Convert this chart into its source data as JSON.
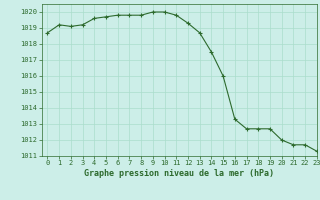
{
  "x": [
    0,
    1,
    2,
    3,
    4,
    5,
    6,
    7,
    8,
    9,
    10,
    11,
    12,
    13,
    14,
    15,
    16,
    17,
    18,
    19,
    20,
    21,
    22,
    23
  ],
  "y": [
    1018.7,
    1019.2,
    1019.1,
    1019.2,
    1019.6,
    1019.7,
    1019.8,
    1019.8,
    1019.8,
    1020.0,
    1020.0,
    1019.8,
    1019.3,
    1018.7,
    1017.5,
    1016.0,
    1013.3,
    1012.7,
    1012.7,
    1012.7,
    1012.0,
    1011.7,
    1011.7,
    1011.3
  ],
  "line_color": "#2d6a2d",
  "marker": "+",
  "marker_size": 3,
  "bg_color": "#cceee8",
  "grid_color": "#aaddcc",
  "title": "Graphe pression niveau de la mer (hPa)",
  "ylim": [
    1011,
    1020.5
  ],
  "xlim": [
    -0.5,
    23
  ],
  "yticks": [
    1011,
    1012,
    1013,
    1014,
    1015,
    1016,
    1017,
    1018,
    1019,
    1020
  ],
  "xticks": [
    0,
    1,
    2,
    3,
    4,
    5,
    6,
    7,
    8,
    9,
    10,
    11,
    12,
    13,
    14,
    15,
    16,
    17,
    18,
    19,
    20,
    21,
    22,
    23
  ],
  "tick_color": "#2d6a2d",
  "tick_fontsize": 5.0,
  "title_fontsize": 6.0,
  "title_color": "#2d6a2d",
  "title_fontweight": "bold"
}
